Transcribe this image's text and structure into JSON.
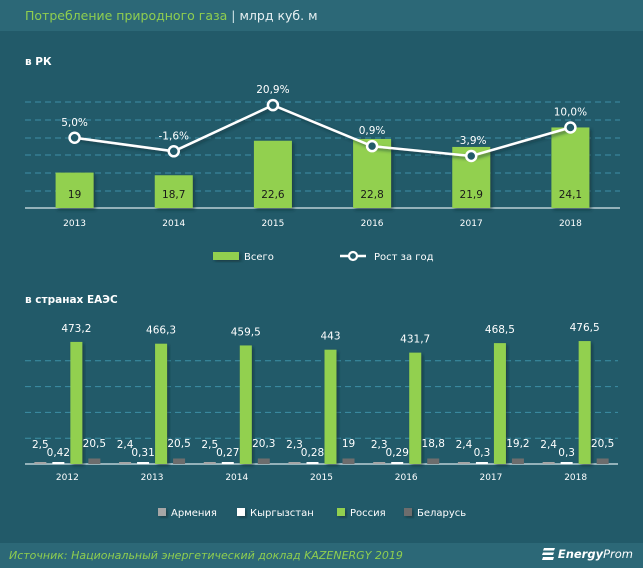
{
  "header": {
    "title": "Потребление природного газа",
    "separator": "|",
    "unit": "млрд куб. м"
  },
  "footer": {
    "source": "Источник: Национальный  энергетический доклад KAZENERGY 2019",
    "logo_icon": "energyprom-logo-icon",
    "logo_bold": "Energy",
    "logo_rest": "Prom"
  },
  "colors": {
    "background": "#225a69",
    "header": "#2c6877",
    "green": "#92d050",
    "armenia": "#a6a6a6",
    "kyrgyzstan": "#ffffff",
    "russia": "#92d050",
    "belarus": "#6d6d6d",
    "grid": "#3d8fa6"
  },
  "chart_data": [
    {
      "type": "bar+line",
      "title": "в РК",
      "categories": [
        "2013",
        "2014",
        "2015",
        "2016",
        "2017",
        "2018"
      ],
      "series": [
        {
          "name": "Всего",
          "type": "bar",
          "values": [
            19,
            18.7,
            22.6,
            22.8,
            21.9,
            24.1
          ],
          "labels": [
            "19",
            "18,7",
            "22,6",
            "22,8",
            "21,9",
            "24,1"
          ]
        },
        {
          "name": "Рост за год",
          "type": "line",
          "values": [
            5.0,
            -1.6,
            20.9,
            0.9,
            -3.9,
            10.0
          ],
          "labels": [
            "5,0%",
            "-1,6%",
            "20,9%",
            "0,9%",
            "-3,9%",
            "10,0%"
          ]
        }
      ],
      "legend": [
        "Всего",
        "Рост за год"
      ],
      "legend_position": "bottom",
      "grid": true
    },
    {
      "type": "bar",
      "title": "в странах  ЕАЭС",
      "categories": [
        "2012",
        "2013",
        "2014",
        "2015",
        "2016",
        "2017",
        "2018"
      ],
      "series": [
        {
          "name": "Армения",
          "values": [
            2.5,
            2.4,
            2.5,
            2.3,
            2.3,
            2.4,
            2.4
          ],
          "labels": [
            "2,5",
            "2,4",
            "2,5",
            "2,3",
            "2,3",
            "2,4",
            "2,4"
          ]
        },
        {
          "name": "Кыргызстан",
          "values": [
            0.42,
            0.31,
            0.27,
            0.28,
            0.29,
            0.3,
            0.3
          ],
          "labels": [
            "0,42",
            "0,31",
            "0,27",
            "0,28",
            "0,29",
            "0,3",
            "0,3"
          ]
        },
        {
          "name": "Россия",
          "values": [
            473.2,
            466.3,
            459.5,
            443,
            431.7,
            468.5,
            476.5
          ],
          "labels": [
            "473,2",
            "466,3",
            "459,5",
            "443",
            "431,7",
            "468,5",
            "476,5"
          ]
        },
        {
          "name": "Беларусь",
          "values": [
            20.5,
            20.5,
            20.3,
            19,
            18.8,
            19.2,
            20.5
          ],
          "labels": [
            "20,5",
            "20,5",
            "20,3",
            "19",
            "18,8",
            "19,2",
            "20,5"
          ]
        }
      ],
      "legend": [
        "Армения",
        "Кыргызстан",
        "Россия",
        "Беларусь"
      ],
      "legend_position": "bottom",
      "ylim": [
        0,
        500
      ],
      "grid": true
    }
  ]
}
